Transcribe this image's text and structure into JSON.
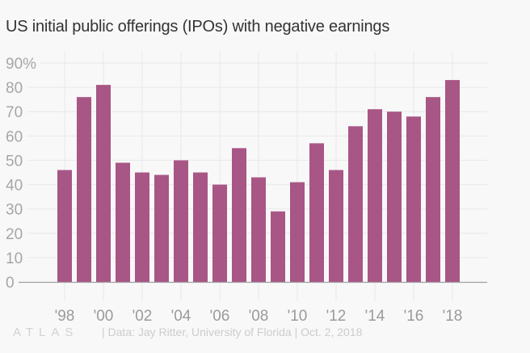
{
  "chart_data": {
    "type": "bar",
    "title": "US initial public offerings (IPOs) with negative earnings",
    "xlabel": "",
    "ylabel": "",
    "categories": [
      "1998",
      "1999",
      "2000",
      "2001",
      "2002",
      "2003",
      "2004",
      "2005",
      "2006",
      "2007",
      "2008",
      "2009",
      "2010",
      "2011",
      "2012",
      "2013",
      "2014",
      "2015",
      "2016",
      "2017",
      "2018"
    ],
    "values": [
      46,
      76,
      81,
      49,
      45,
      44,
      50,
      45,
      40,
      55,
      43,
      29,
      41,
      57,
      46,
      64,
      71,
      70,
      68,
      76,
      83
    ],
    "ylim": [
      0,
      90
    ],
    "yticks": [
      0,
      10,
      20,
      30,
      40,
      50,
      60,
      70,
      80,
      90
    ],
    "ytick_labels": [
      "0",
      "10",
      "20",
      "30",
      "40",
      "50",
      "60",
      "70",
      "80",
      "90%"
    ],
    "xtick_labels": [
      "'98",
      "'00",
      "'02",
      "'04",
      "'06",
      "'08",
      "'10",
      "'12",
      "'14",
      "'16",
      "'18"
    ],
    "grid": true,
    "colors": {
      "bar": "#a85685",
      "grid": "#ebebeb",
      "axis": "#a0a0a0",
      "background": "#f8f8f8"
    }
  },
  "footer": {
    "logo": "ATLAS",
    "source": "| Data: Jay Ritter, University of Florida | Oct. 2, 2018"
  }
}
